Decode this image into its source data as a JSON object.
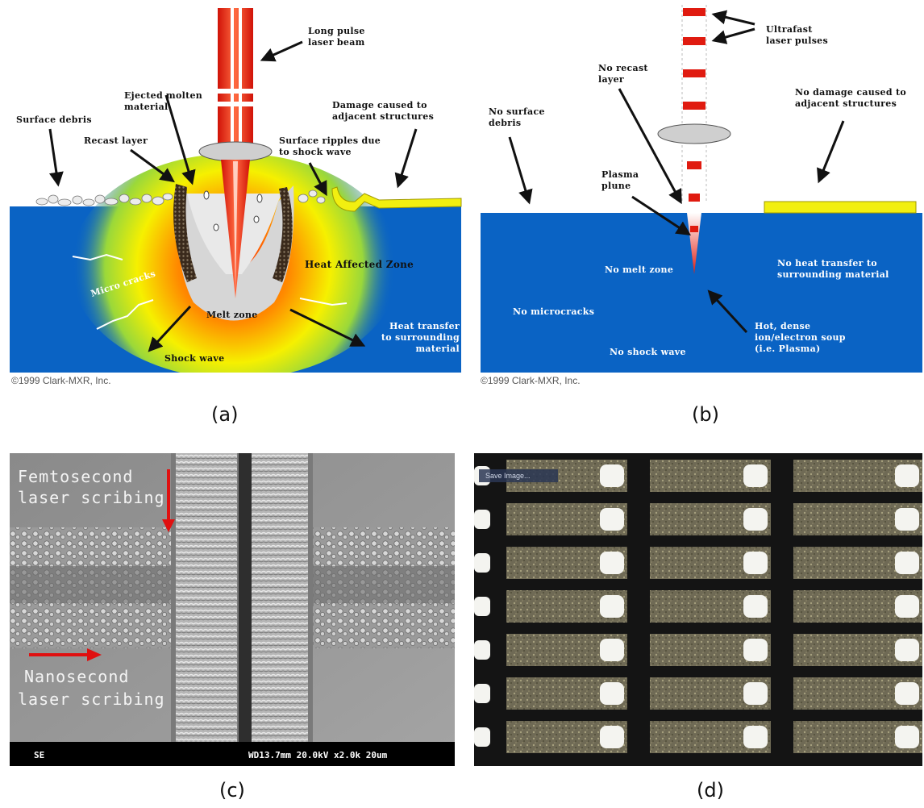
{
  "panel_a": {
    "caption": "(a)",
    "copyright": "©1999 Clark-MXR, Inc.",
    "labels": {
      "long_pulse_1": "Long pulse",
      "long_pulse_2": "laser beam",
      "ejected_1": "Ejected molten",
      "ejected_2": "material",
      "surface_debris": "Surface debris",
      "recast_layer": "Recast layer",
      "damage_1": "Damage caused to",
      "damage_2": "adjacent structures",
      "ripples_1": "Surface ripples due",
      "ripples_2": "to shock wave",
      "haz": "Heat Affected Zone",
      "micro_cracks": "Micro cracks",
      "melt_zone": "Melt zone",
      "heat_transfer_1": "Heat transfer",
      "heat_transfer_2": "to surrounding",
      "heat_transfer_3": "material",
      "shock_wave": "Shock wave"
    }
  },
  "panel_b": {
    "caption": "(b)",
    "copyright": "©1999 Clark-MXR, Inc.",
    "labels": {
      "ultrafast_1": "Ultrafast",
      "ultrafast_2": "laser pulses",
      "no_recast_1": "No recast",
      "no_recast_2": "layer",
      "no_debris_1": "No surface",
      "no_debris_2": "debris",
      "no_damage_1": "No damage caused to",
      "no_damage_2": "adjacent structures",
      "plasma_1": "Plasma",
      "plasma_2": "plune",
      "no_melt": "No melt zone",
      "no_heat_1": "No heat transfer to",
      "no_heat_2": "surrounding material",
      "no_microcracks": "No microcracks",
      "hot_1": "Hot, dense",
      "hot_2": "ion/electron soup",
      "hot_3": "(i.e. Plasma)",
      "no_shock": "No shock wave"
    }
  },
  "panel_c": {
    "caption": "(c)",
    "femto_1": "Femtosecond",
    "femto_2": "laser scribing",
    "nano_1": "Nanosecond",
    "nano_2": "laser scribing",
    "sem_mode": "SE",
    "sem_info": "WD13.7mm 20.0kV x2.0k   20um"
  },
  "panel_d": {
    "caption": "(d)",
    "tag": "Save Image..."
  },
  "colors": {
    "substrate_blue": "#0a63c4",
    "laser_red": "#e01b10",
    "damage_yellow": "#f2ef10",
    "arrow_red": "#e01010"
  }
}
